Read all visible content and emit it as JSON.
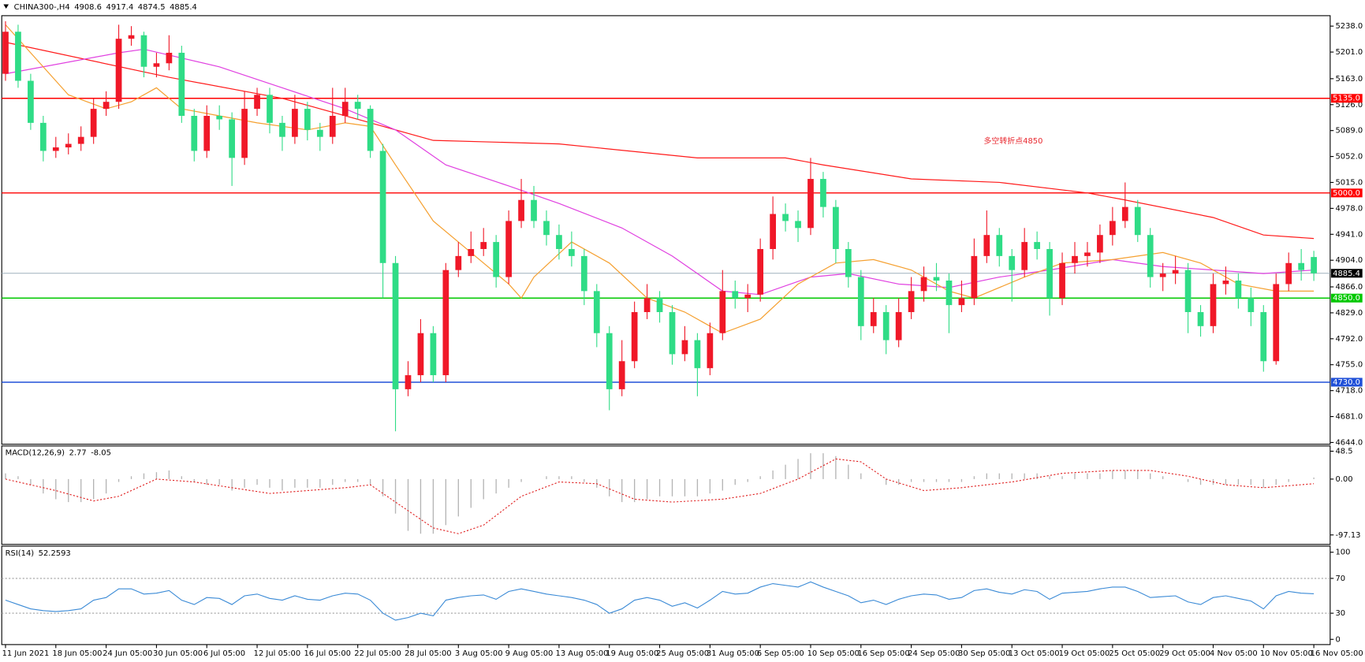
{
  "chart_data": [
    {
      "type": "candlestick",
      "title": "CHINA300-,H4",
      "xlim": [
        -0.3,
        105.3
      ],
      "xticks": [
        {
          "value": 0,
          "label": "11 Jun 2021"
        },
        {
          "value": 4,
          "label": "18 Jun 05:00"
        },
        {
          "value": 8,
          "label": "24 Jun 05:00"
        },
        {
          "value": 12,
          "label": "30 Jun 05:00"
        },
        {
          "value": 16,
          "label": "6 Jul 05:00"
        },
        {
          "value": 20,
          "label": "12 Jul 05:00"
        },
        {
          "value": 24,
          "label": "16 Jul 05:00"
        },
        {
          "value": 28,
          "label": "22 Jul 05:00"
        },
        {
          "value": 32,
          "label": "28 Jul 05:00"
        },
        {
          "value": 36,
          "label": "3 Aug 05:00"
        },
        {
          "value": 40,
          "label": "9 Aug 05:00"
        },
        {
          "value": 44,
          "label": "13 Aug 05:00"
        },
        {
          "value": 48,
          "label": "19 Aug 05:00"
        },
        {
          "value": 52,
          "label": "25 Aug 05:00"
        },
        {
          "value": 56,
          "label": "31 Aug 05:00"
        },
        {
          "value": 60,
          "label": "6 Sep 05:00"
        },
        {
          "value": 64,
          "label": "10 Sep 05:00"
        },
        {
          "value": 68,
          "label": "16 Sep 05:00"
        },
        {
          "value": 72,
          "label": "24 Sep 05:00"
        },
        {
          "value": 76,
          "label": "30 Sep 05:00"
        },
        {
          "value": 80,
          "label": "13 Oct 05:00"
        },
        {
          "value": 84,
          "label": "19 Oct 05:00"
        },
        {
          "value": 88,
          "label": "25 Oct 05:00"
        },
        {
          "value": 92,
          "label": "29 Oct 05:00"
        },
        {
          "value": 96,
          "label": "4 Nov 05:00"
        },
        {
          "value": 100,
          "label": "10 Nov 05:00"
        },
        {
          "value": 104,
          "label": "16 Nov 05:00"
        }
      ],
      "ylim": [
        4641.5,
        5252.9
      ],
      "yticks": [
        {
          "value": 5238,
          "label": "5238.0"
        },
        {
          "value": 5201,
          "label": "5201.0"
        },
        {
          "value": 5163,
          "label": "5163.0"
        },
        {
          "value": 5126,
          "label": "5126.0"
        },
        {
          "value": 5089,
          "label": "5089.0"
        },
        {
          "value": 5052,
          "label": "5052.0"
        },
        {
          "value": 5015,
          "label": "5015.0"
        },
        {
          "value": 4978,
          "label": "4978.0"
        },
        {
          "value": 4941,
          "label": "4941.0"
        },
        {
          "value": 4904,
          "label": "4904.0"
        },
        {
          "value": 4866,
          "label": "4866.0"
        },
        {
          "value": 4829,
          "label": "4829.0"
        },
        {
          "value": 4792,
          "label": "4792.0"
        },
        {
          "value": 4755,
          "label": "4755.0"
        },
        {
          "value": 4718,
          "label": "4718.0"
        },
        {
          "value": 4681,
          "label": "4681.0"
        },
        {
          "value": 4644,
          "label": "4644.0"
        }
      ],
      "up_color": "#f01828",
      "down_color": "#2fdc86",
      "open": [
        5170,
        5230,
        5160,
        5100,
        5060,
        5065,
        5070,
        5080,
        5120,
        5130,
        5220,
        5225,
        5180,
        5185,
        5200,
        5110,
        5060,
        5110,
        5105,
        5050,
        5120,
        5140,
        5100,
        5080,
        5120,
        5090,
        5080,
        5110,
        5130,
        5120,
        5060,
        4900,
        4720,
        4740,
        4800,
        4740,
        4890,
        4910,
        4920,
        4930,
        4880,
        4960,
        4990,
        4960,
        4940,
        4920,
        4910,
        4860,
        4800,
        4720,
        4760,
        4830,
        4850,
        4830,
        4770,
        4790,
        4750,
        4800,
        4860,
        4850,
        4855,
        4920,
        4970,
        4960,
        4950,
        5020,
        4980,
        4920,
        4880,
        4810,
        4830,
        4790,
        4830,
        4860,
        4880,
        4875,
        4840,
        4850,
        4910,
        4940,
        4910,
        4890,
        4930,
        4920,
        4850,
        4900,
        4910,
        4915,
        4940,
        4960,
        4980,
        4940,
        4880,
        4885,
        4890,
        4830,
        4810,
        4870,
        4875,
        4850,
        4830,
        4760,
        4870,
        4900,
        4908.6
      ],
      "high": [
        5245,
        5240,
        5170,
        5110,
        5080,
        5085,
        5095,
        5135,
        5145,
        5240,
        5238,
        5230,
        5200,
        5225,
        5210,
        5120,
        5125,
        5125,
        5115,
        5145,
        5150,
        5150,
        5110,
        5140,
        5130,
        5100,
        5150,
        5150,
        5140,
        5125,
        5070,
        4910,
        4760,
        4820,
        4810,
        4900,
        4930,
        4945,
        4950,
        4940,
        4975,
        5020,
        5010,
        4975,
        4955,
        4945,
        4920,
        4870,
        4810,
        4790,
        4845,
        4870,
        4860,
        4840,
        4810,
        4800,
        4815,
        4890,
        4875,
        4870,
        4935,
        4995,
        4985,
        4975,
        5050,
        5030,
        4990,
        4930,
        4890,
        4850,
        4840,
        4850,
        4880,
        4895,
        4900,
        4885,
        4875,
        4935,
        4975,
        4950,
        4920,
        4950,
        4945,
        4930,
        4915,
        4930,
        4930,
        4955,
        4980,
        5015,
        4990,
        4950,
        4900,
        4910,
        4900,
        4840,
        4885,
        4895,
        4885,
        4865,
        4840,
        4885,
        4915,
        4920,
        4917.4
      ],
      "low": [
        5160,
        5150,
        5090,
        5045,
        5050,
        5055,
        5060,
        5070,
        5110,
        5120,
        5210,
        5165,
        5165,
        5175,
        5100,
        5045,
        5050,
        5090,
        5010,
        5040,
        5110,
        5085,
        5060,
        5070,
        5075,
        5060,
        5070,
        5100,
        5105,
        5050,
        4850,
        4660,
        4710,
        4730,
        4730,
        4730,
        4880,
        4900,
        4910,
        4865,
        4870,
        4950,
        4950,
        4925,
        4905,
        4895,
        4840,
        4780,
        4690,
        4710,
        4750,
        4820,
        4815,
        4755,
        4760,
        4710,
        4740,
        4790,
        4835,
        4830,
        4845,
        4905,
        4945,
        4930,
        4940,
        4965,
        4900,
        4865,
        4790,
        4800,
        4770,
        4780,
        4820,
        4845,
        4860,
        4800,
        4830,
        4840,
        4900,
        4895,
        4845,
        4880,
        4905,
        4825,
        4840,
        4885,
        4895,
        4900,
        4925,
        4950,
        4930,
        4865,
        4860,
        4870,
        4800,
        4795,
        4800,
        4855,
        4835,
        4810,
        4745,
        4755,
        4860,
        4875,
        4874.5
      ],
      "close": [
        5230,
        5160,
        5100,
        5060,
        5065,
        5070,
        5080,
        5120,
        5130,
        5220,
        5225,
        5180,
        5185,
        5200,
        5110,
        5060,
        5110,
        5105,
        5050,
        5120,
        5140,
        5100,
        5080,
        5120,
        5090,
        5080,
        5110,
        5130,
        5120,
        5060,
        4900,
        4720,
        4740,
        4800,
        4740,
        4890,
        4910,
        4920,
        4930,
        4880,
        4960,
        4990,
        4960,
        4940,
        4920,
        4910,
        4860,
        4800,
        4720,
        4760,
        4830,
        4850,
        4830,
        4770,
        4790,
        4750,
        4800,
        4860,
        4850,
        4855,
        4920,
        4970,
        4960,
        4950,
        5020,
        4980,
        4920,
        4880,
        4810,
        4830,
        4790,
        4830,
        4860,
        4880,
        4875,
        4840,
        4850,
        4910,
        4940,
        4910,
        4890,
        4930,
        4920,
        4850,
        4900,
        4910,
        4915,
        4940,
        4960,
        4980,
        4940,
        4880,
        4885,
        4890,
        4830,
        4810,
        4870,
        4875,
        4850,
        4830,
        4760,
        4870,
        4900,
        4890,
        4885.4
      ],
      "lines": [
        {
          "color": "#ff1a1a",
          "x": [
            0,
            13,
            22,
            29,
            34,
            44,
            55,
            62,
            65,
            72,
            79,
            86,
            89,
            96,
            100,
            104
          ],
          "values": [
            5215,
            5165,
            5135,
            5100,
            5075,
            5070,
            5050,
            5050,
            5040,
            5020,
            5015,
            5000,
            4990,
            4965,
            4940,
            4935
          ]
        },
        {
          "color": "#e040e0",
          "x": [
            0,
            9,
            11,
            17,
            22,
            27,
            31,
            35,
            40,
            44,
            49,
            53,
            57,
            60,
            64,
            67,
            71,
            75,
            79,
            83,
            88,
            92,
            96,
            100,
            104
          ],
          "values": [
            5170,
            5200,
            5205,
            5180,
            5150,
            5120,
            5090,
            5040,
            5010,
            4985,
            4950,
            4910,
            4860,
            4855,
            4880,
            4885,
            4870,
            4865,
            4880,
            4890,
            4905,
            4895,
            4890,
            4885,
            4890
          ]
        },
        {
          "color": "#f5a030",
          "x": [
            0,
            2,
            5,
            8,
            10,
            12,
            14,
            17,
            20,
            24,
            27,
            29,
            31,
            34,
            38,
            40,
            41,
            42,
            45,
            48,
            51,
            54,
            57,
            60,
            63,
            66,
            69,
            72,
            75,
            77,
            81,
            84,
            88,
            92,
            95,
            98,
            101,
            104
          ],
          "values": [
            5240,
            5200,
            5140,
            5120,
            5130,
            5150,
            5120,
            5110,
            5100,
            5090,
            5100,
            5095,
            5040,
            4960,
            4900,
            4870,
            4850,
            4880,
            4930,
            4900,
            4850,
            4830,
            4800,
            4820,
            4870,
            4900,
            4905,
            4890,
            4860,
            4850,
            4880,
            4900,
            4905,
            4915,
            4900,
            4870,
            4860,
            4860
          ]
        }
      ],
      "levels": [
        {
          "value": 5135,
          "label": "5135.0",
          "color": "#ff0000"
        },
        {
          "value": 5000,
          "label": "5000.0",
          "color": "#ff0000"
        },
        {
          "value": 4850,
          "label": "4850.0",
          "color": "#00c800"
        },
        {
          "value": 4730,
          "label": "4730.0",
          "color": "#2050d8"
        }
      ],
      "price_line_color": "#9fb0bd",
      "annotation": "多空转折点4850",
      "annotation_color": "#e8262d"
    },
    {
      "type": "macd",
      "title": "MACD(12,26,9)",
      "xlim": [
        -0.3,
        105.3
      ],
      "ylim": [
        -113.6,
        57.6
      ],
      "yticks": [
        48.5,
        {
          "value": 0,
          "label": "0.00"
        },
        -97.13
      ],
      "histogram_color": "#b4b4b4",
      "histogram": [
        10,
        5,
        -10,
        -25,
        -35,
        -40,
        -40,
        -35,
        -25,
        -5,
        5,
        10,
        12,
        15,
        5,
        -5,
        -10,
        -10,
        -20,
        -15,
        -10,
        -15,
        -20,
        -15,
        -15,
        -15,
        -10,
        -5,
        -5,
        -10,
        -30,
        -60,
        -90,
        -95,
        -95,
        -80,
        -65,
        -50,
        -35,
        -25,
        -15,
        -5,
        0,
        5,
        5,
        5,
        -5,
        -15,
        -30,
        -40,
        -40,
        -35,
        -30,
        -30,
        -30,
        -30,
        -25,
        -20,
        -10,
        -5,
        5,
        15,
        25,
        35,
        45,
        45,
        40,
        25,
        10,
        0,
        -10,
        -10,
        -5,
        -5,
        -5,
        -5,
        -5,
        5,
        10,
        10,
        10,
        10,
        10,
        5,
        5,
        10,
        10,
        10,
        15,
        15,
        15,
        10,
        5,
        0,
        -5,
        -10,
        -10,
        -10,
        -10,
        -10,
        -15,
        -10,
        -5,
        0,
        2.77
      ],
      "signal": {
        "color": "#e02020",
        "x": [
          0,
          4,
          7,
          9,
          12,
          15,
          18,
          21,
          24,
          27,
          29,
          31,
          34,
          36,
          38,
          41,
          44,
          47,
          50,
          53,
          57,
          60,
          63,
          66,
          68,
          70,
          73,
          76,
          80,
          84,
          88,
          91,
          94,
          97,
          100,
          104
        ],
        "values": [
          0,
          -20,
          -38,
          -30,
          0,
          -5,
          -15,
          -25,
          -20,
          -15,
          -10,
          -40,
          -85,
          -95,
          -80,
          -30,
          -5,
          -8,
          -35,
          -40,
          -35,
          -25,
          0,
          35,
          30,
          0,
          -20,
          -15,
          -5,
          10,
          15,
          15,
          5,
          -10,
          -15,
          -8.05
        ]
      }
    },
    {
      "type": "line",
      "title": "RSI(14)",
      "xlim": [
        -0.3,
        105.3
      ],
      "ylim": [
        -6,
        107
      ],
      "yticks": [
        100,
        70,
        30,
        0
      ],
      "levels": [
        70,
        30
      ],
      "color": "#3a8ad6",
      "values": [
        45,
        40,
        35,
        33,
        32,
        33,
        35,
        45,
        48,
        58,
        58,
        52,
        53,
        56,
        45,
        40,
        48,
        47,
        40,
        50,
        52,
        47,
        45,
        50,
        46,
        45,
        50,
        53,
        52,
        45,
        30,
        22,
        25,
        30,
        27,
        45,
        48,
        50,
        51,
        46,
        55,
        58,
        55,
        52,
        50,
        48,
        45,
        40,
        30,
        35,
        45,
        48,
        45,
        38,
        42,
        36,
        45,
        55,
        52,
        53,
        60,
        64,
        62,
        60,
        66,
        60,
        55,
        50,
        42,
        45,
        40,
        46,
        50,
        52,
        51,
        46,
        48,
        56,
        58,
        54,
        52,
        57,
        55,
        46,
        53,
        54,
        55,
        58,
        60,
        60,
        55,
        48,
        49,
        50,
        43,
        40,
        48,
        50,
        47,
        44,
        35,
        50,
        55,
        53,
        52.2593
      ]
    }
  ]
}
